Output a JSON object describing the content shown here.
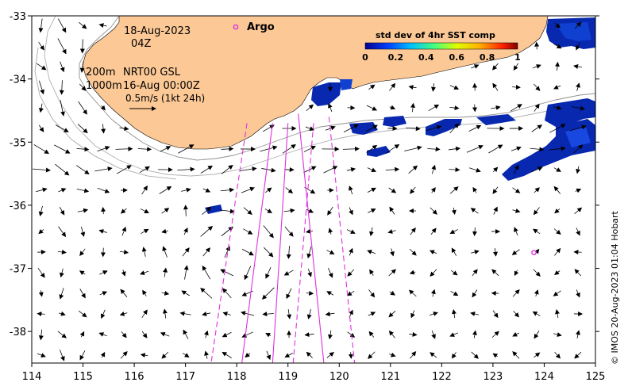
{
  "map": {
    "date": "18-Aug-2023",
    "hour": "04Z",
    "depth_200": "200m",
    "depth_1000": "1000m",
    "product": "NRT00 GSL",
    "ref_date": "16-Aug 00:00Z",
    "scale_label": "0.5m/s (1kt 24h)",
    "credit": "© IMOS 20-Aug-2023 01:04 Hobart",
    "lon_range": [
      114,
      125
    ],
    "lat_range": [
      -38.5,
      -33
    ],
    "lon_ticks": [
      "114",
      "115",
      "116",
      "117",
      "118",
      "119",
      "120",
      "121",
      "122",
      "123",
      "124",
      "125"
    ],
    "lat_ticks": [
      "-33",
      "-34",
      "-35",
      "-36",
      "-37",
      "-38"
    ],
    "land_color": "#fbc896",
    "argo_color": "#e030e0"
  },
  "legend": {
    "argo_label": "Argo",
    "colorbar_title": "std dev of 4hr SST comp",
    "colorbar_ticks": [
      "0",
      "0.2",
      "0.4",
      "0.6",
      "0.8",
      "1"
    ]
  },
  "argo_floats": [
    {
      "lon": 123.8,
      "lat": -36.75
    }
  ],
  "tracks": [
    {
      "style": "solid",
      "from": [
        118.7,
        -34.7
      ],
      "to": [
        118.1,
        -38.5
      ]
    },
    {
      "style": "solid",
      "from": [
        119.0,
        -34.7
      ],
      "to": [
        118.7,
        -38.5
      ]
    },
    {
      "style": "solid",
      "from": [
        119.2,
        -34.55
      ],
      "to": [
        119.7,
        -38.5
      ]
    },
    {
      "style": "dashed",
      "from": [
        118.2,
        -34.7
      ],
      "to": [
        117.5,
        -38.5
      ]
    },
    {
      "style": "dashed",
      "from": [
        119.5,
        -34.7
      ],
      "to": [
        119.1,
        -38.5
      ]
    },
    {
      "style": "dashed",
      "from": [
        119.8,
        -34.6
      ],
      "to": [
        120.3,
        -38.5
      ]
    }
  ]
}
